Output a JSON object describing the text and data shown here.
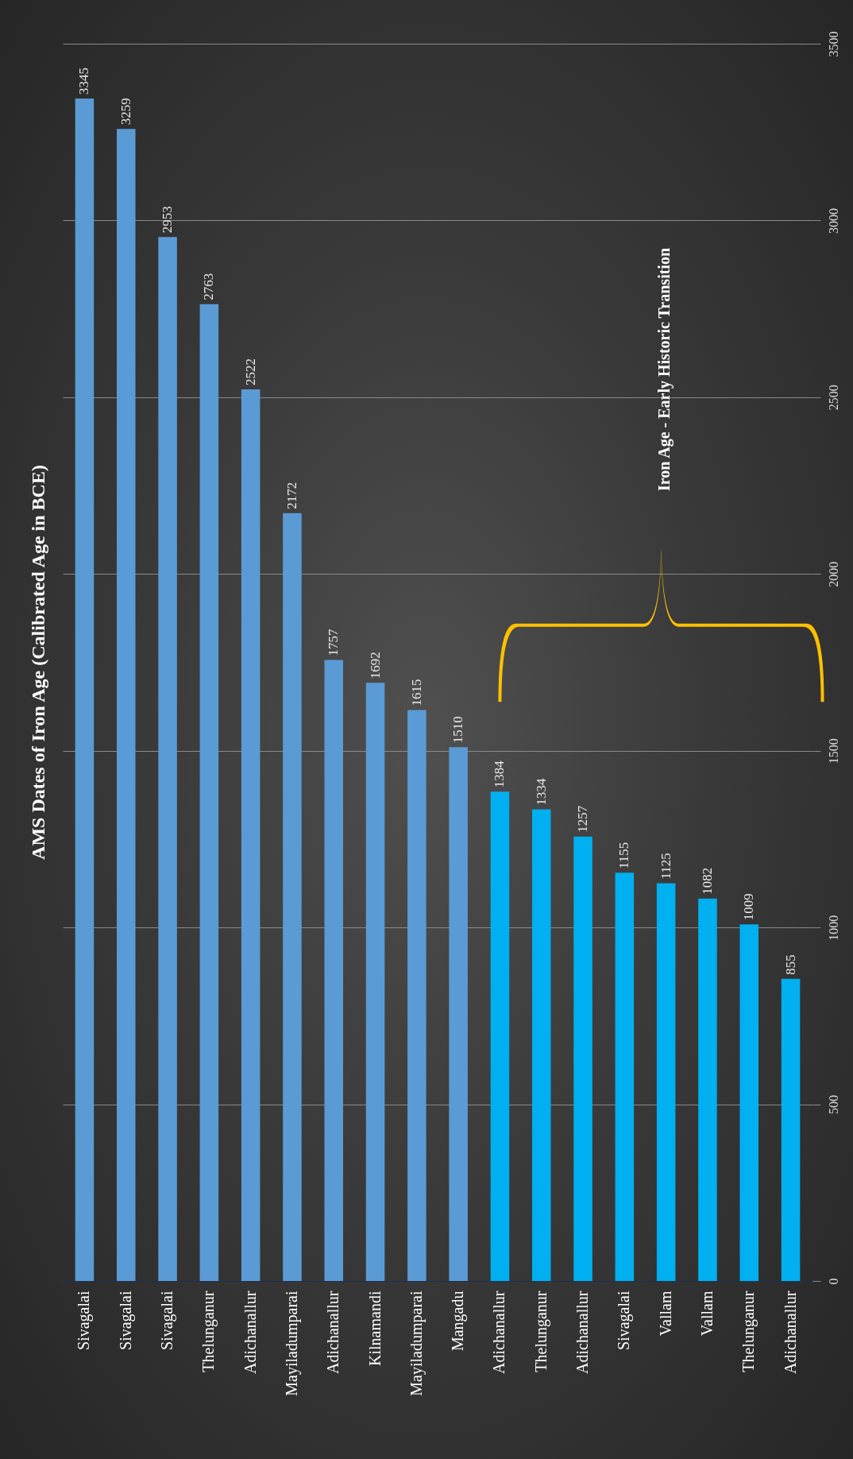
{
  "chart_data": {
    "type": "bar",
    "title": "AMS Dates of Iron Age (Calibrated Age in BCE)",
    "categories": [
      "Sivagalai",
      "Sivagalai",
      "Sivagalai",
      "Thelunganur",
      "Adichanallur",
      "Mayiladumparai",
      "Adichanallur",
      "Kilnamandi",
      "Mayiladumparai",
      "Mangadu",
      "Adichanallur",
      "Thelunganur",
      "Adichanallur",
      "Sivagalai",
      "Vallam",
      "Vallam",
      "Thelunganur",
      "Adichanallur"
    ],
    "values": [
      3345,
      3259,
      2953,
      2763,
      2522,
      2172,
      1757,
      1692,
      1615,
      1510,
      1384,
      1334,
      1257,
      1155,
      1125,
      1082,
      1009,
      855
    ],
    "colors": [
      "#5b9bd5",
      "#5b9bd5",
      "#5b9bd5",
      "#5b9bd5",
      "#5b9bd5",
      "#5b9bd5",
      "#5b9bd5",
      "#5b9bd5",
      "#5b9bd5",
      "#5b9bd5",
      "#00b0f0",
      "#00b0f0",
      "#00b0f0",
      "#00b0f0",
      "#00b0f0",
      "#00b0f0",
      "#00b0f0",
      "#00b0f0"
    ],
    "ylim": [
      0,
      3500
    ],
    "yticks": [
      0,
      500,
      1000,
      1500,
      2000,
      2500,
      3000,
      3500
    ],
    "grid": "y",
    "data_labels": true,
    "annotations": [
      "Iron Age - Early Historic Transition"
    ]
  }
}
